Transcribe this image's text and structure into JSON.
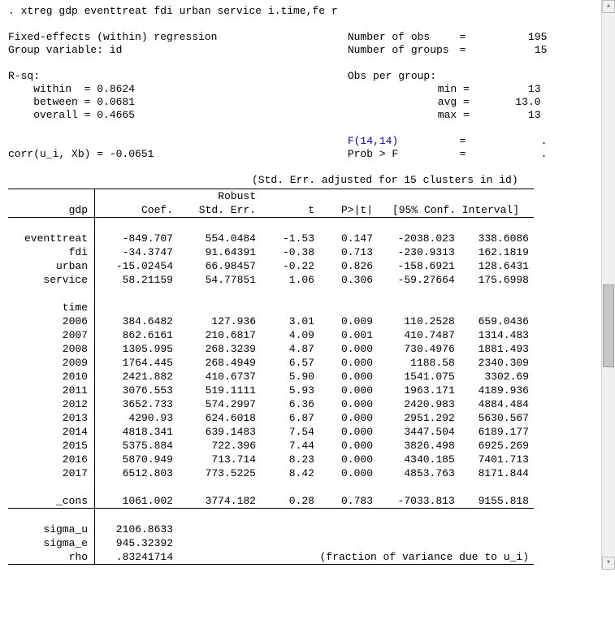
{
  "command": ". xtreg gdp eventtreat fdi urban service i.time,fe r",
  "header": {
    "l1a": "Fixed-effects (within) regression",
    "l1b_lab": "Number of obs",
    "l1b_eq": "=",
    "l1b_val": "195",
    "l2a": "Group variable: id",
    "l2b_lab": "Number of groups",
    "l2b_eq": "=",
    "l2b_val": "15",
    "rsq": "R-sq:",
    "rsq_grp": "Obs per group:",
    "within_lab": "    within  = 0.8624",
    "min_lab": "min =",
    "min_val": "13",
    "between_lab": "    between = 0.0681",
    "avg_lab": "avg =",
    "avg_val": "13.0",
    "overall_lab": "    overall = 0.4665",
    "max_lab": "max =",
    "max_val": "13",
    "f_lab": "F(14,14)",
    "f_eq": "=",
    "f_val": ".",
    "corr": "corr(u_i, Xb)  = -0.0651",
    "p_lab": "Prob > F",
    "p_eq": "=",
    "p_val": ".",
    "adj": "(Std. Err. adjusted for 15 clusters in id)"
  },
  "colhdr": {
    "robust": "Robust",
    "dep": "gdp",
    "coef": "Coef.",
    "se": "Std. Err.",
    "t": "t",
    "p": "P>|t|",
    "ci": "[95% Conf. Interval]"
  },
  "rows": [
    {
      "lab": "eventtreat",
      "c": "-849.707",
      "s": "554.0484",
      "t": "-1.53",
      "p": "0.147",
      "lo": "-2038.023",
      "hi": "338.6086"
    },
    {
      "lab": "fdi",
      "c": "-34.3747",
      "s": "91.64391",
      "t": "-0.38",
      "p": "0.713",
      "lo": "-230.9313",
      "hi": "162.1819"
    },
    {
      "lab": "urban",
      "c": "-15.02454",
      "s": "66.98457",
      "t": "-0.22",
      "p": "0.826",
      "lo": "-158.6921",
      "hi": "128.6431"
    },
    {
      "lab": "service",
      "c": "58.21159",
      "s": "54.77851",
      "t": "1.06",
      "p": "0.306",
      "lo": "-59.27664",
      "hi": "175.6998"
    }
  ],
  "time_header": "time",
  "time_rows": [
    {
      "lab": "2006",
      "c": "384.6482",
      "s": "127.936",
      "t": "3.01",
      "p": "0.009",
      "lo": "110.2528",
      "hi": "659.0436"
    },
    {
      "lab": "2007",
      "c": "862.6161",
      "s": "210.6817",
      "t": "4.09",
      "p": "0.001",
      "lo": "410.7487",
      "hi": "1314.483"
    },
    {
      "lab": "2008",
      "c": "1305.995",
      "s": "268.3239",
      "t": "4.87",
      "p": "0.000",
      "lo": "730.4976",
      "hi": "1881.493"
    },
    {
      "lab": "2009",
      "c": "1764.445",
      "s": "268.4949",
      "t": "6.57",
      "p": "0.000",
      "lo": "1188.58",
      "hi": "2340.309"
    },
    {
      "lab": "2010",
      "c": "2421.882",
      "s": "410.6737",
      "t": "5.90",
      "p": "0.000",
      "lo": "1541.075",
      "hi": "3302.69"
    },
    {
      "lab": "2011",
      "c": "3076.553",
      "s": "519.1111",
      "t": "5.93",
      "p": "0.000",
      "lo": "1963.171",
      "hi": "4189.936"
    },
    {
      "lab": "2012",
      "c": "3652.733",
      "s": "574.2997",
      "t": "6.36",
      "p": "0.000",
      "lo": "2420.983",
      "hi": "4884.484"
    },
    {
      "lab": "2013",
      "c": "4290.93",
      "s": "624.6018",
      "t": "6.87",
      "p": "0.000",
      "lo": "2951.292",
      "hi": "5630.567"
    },
    {
      "lab": "2014",
      "c": "4818.341",
      "s": "639.1483",
      "t": "7.54",
      "p": "0.000",
      "lo": "3447.504",
      "hi": "6189.177"
    },
    {
      "lab": "2015",
      "c": "5375.884",
      "s": "722.396",
      "t": "7.44",
      "p": "0.000",
      "lo": "3826.498",
      "hi": "6925.269"
    },
    {
      "lab": "2016",
      "c": "5870.949",
      "s": "713.714",
      "t": "8.23",
      "p": "0.000",
      "lo": "4340.185",
      "hi": "7401.713"
    },
    {
      "lab": "2017",
      "c": "6512.803",
      "s": "773.5225",
      "t": "8.42",
      "p": "0.000",
      "lo": "4853.763",
      "hi": "8171.844"
    }
  ],
  "cons": {
    "lab": "_cons",
    "c": "1061.002",
    "s": "3774.182",
    "t": "0.28",
    "p": "0.783",
    "lo": "-7033.813",
    "hi": "9155.818"
  },
  "footer": {
    "sigma_u_lab": "sigma_u",
    "sigma_u": "2106.8633",
    "sigma_e_lab": "sigma_e",
    "sigma_e": "945.32392",
    "rho_lab": "rho",
    "rho": ".83241714",
    "rho_note": "(fraction of variance due to u_i)"
  }
}
